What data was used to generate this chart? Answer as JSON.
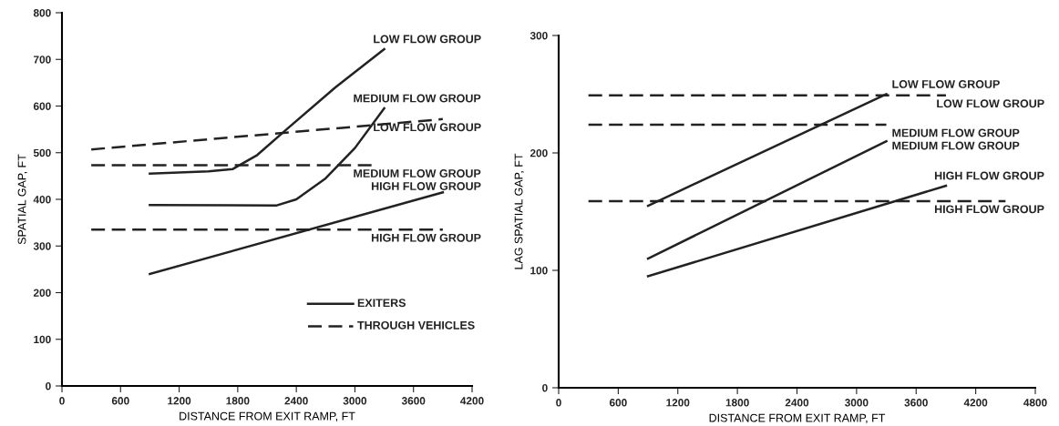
{
  "chart_data": [
    {
      "type": "line",
      "xlabel": "DISTANCE FROM EXIT RAMP, FT",
      "ylabel": "SPATIAL GAP, FT",
      "xlim": [
        0,
        4200
      ],
      "xticks": [
        0,
        600,
        1200,
        1800,
        2400,
        3000,
        3600,
        4200
      ],
      "ylim": [
        0,
        800
      ],
      "yticks": [
        0,
        100,
        200,
        300,
        400,
        500,
        600,
        700,
        800
      ],
      "grid": false,
      "marker": "none",
      "series": [
        {
          "name": "LOW FLOW GROUP",
          "color": "#222222",
          "line_style": "solid",
          "x": [
            900,
            1500,
            1750,
            2000,
            2300,
            2800,
            3300
          ],
          "values": [
            455,
            460,
            465,
            495,
            550,
            640,
            722
          ]
        },
        {
          "name": "MEDIUM FLOW GROUP",
          "color": "#222222",
          "line_style": "solid",
          "x": [
            900,
            2200,
            2400,
            2700,
            3000,
            3300
          ],
          "values": [
            388,
            387,
            400,
            445,
            510,
            595
          ]
        },
        {
          "name": "HIGH FLOW GROUP",
          "color": "#222222",
          "line_style": "solid",
          "x": [
            900,
            3900
          ],
          "values": [
            240,
            415
          ]
        },
        {
          "name": "LOW FLOW GROUP",
          "color": "#222222",
          "line_style": "dashed",
          "x": [
            300,
            3900
          ],
          "values": [
            507,
            572
          ]
        },
        {
          "name": "MEDIUM FLOW GROUP",
          "color": "#222222",
          "line_style": "dashed",
          "x": [
            300,
            3200
          ],
          "values": [
            473,
            473
          ]
        },
        {
          "name": "HIGH FLOW GROUP",
          "color": "#222222",
          "line_style": "dashed",
          "x": [
            300,
            3900
          ],
          "values": [
            335,
            335
          ]
        }
      ],
      "annotations": [
        "EXITERS",
        "THROUGH VEHICLES"
      ]
    },
    {
      "type": "line",
      "xlabel": "DISTANCE FROM EXIT RAMP, FT",
      "ylabel": "LAG SPATIAL GAP, FT",
      "xlim": [
        0,
        4800
      ],
      "xticks": [
        0,
        600,
        1200,
        1800,
        2400,
        3000,
        3600,
        4200,
        4800
      ],
      "ylim": [
        0,
        300
      ],
      "yticks": [
        0,
        100,
        200,
        300
      ],
      "grid": false,
      "marker": "none",
      "series": [
        {
          "name": "LOW FLOW GROUP",
          "color": "#222222",
          "line_style": "solid",
          "x": [
            900,
            3300
          ],
          "values": [
            155,
            250
          ]
        },
        {
          "name": "MEDIUM FLOW GROUP",
          "color": "#222222",
          "line_style": "solid",
          "x": [
            900,
            3300
          ],
          "values": [
            110,
            210
          ]
        },
        {
          "name": "HIGH FLOW GROUP",
          "color": "#222222",
          "line_style": "solid",
          "x": [
            900,
            3900
          ],
          "values": [
            95,
            172
          ]
        },
        {
          "name": "LOW FLOW GROUP",
          "color": "#222222",
          "line_style": "dashed",
          "x": [
            300,
            3900
          ],
          "values": [
            249,
            249
          ]
        },
        {
          "name": "MEDIUM FLOW GROUP",
          "color": "#222222",
          "line_style": "dashed",
          "x": [
            300,
            3300
          ],
          "values": [
            224,
            224
          ]
        },
        {
          "name": "HIGH FLOW GROUP",
          "color": "#222222",
          "line_style": "dashed",
          "x": [
            300,
            4500
          ],
          "values": [
            159,
            159
          ]
        }
      ]
    }
  ]
}
